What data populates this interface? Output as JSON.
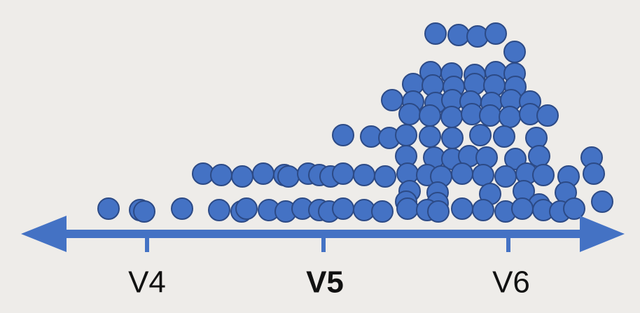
{
  "axis": {
    "labels": [
      "V4",
      "V5",
      "V6"
    ]
  }
}
